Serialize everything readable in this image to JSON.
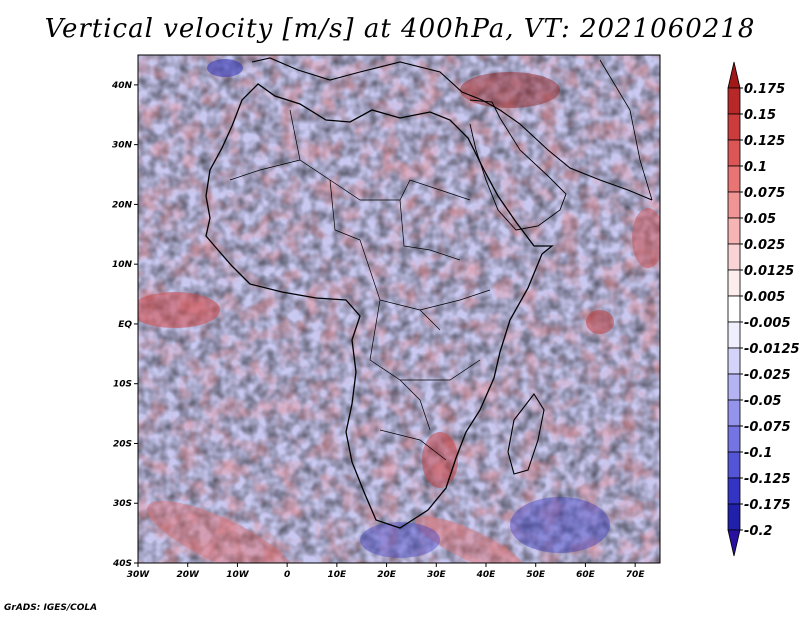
{
  "title": "Vertical velocity [m/s] at 400hPa, VT: 2021060218",
  "credit": "GrADS: IGES/COLA",
  "map": {
    "lat_labels": [
      "40N",
      "30N",
      "20N",
      "10N",
      "EQ",
      "10S",
      "20S",
      "30S",
      "40S"
    ],
    "lat_values": [
      40,
      30,
      20,
      10,
      0,
      -10,
      -20,
      -30,
      -40
    ],
    "lon_labels": [
      "30W",
      "20W",
      "10W",
      "0",
      "10E",
      "20E",
      "30E",
      "40E",
      "50E",
      "60E",
      "70E"
    ],
    "lon_values": [
      -30,
      -20,
      -10,
      0,
      10,
      20,
      30,
      40,
      50,
      60,
      70
    ],
    "lon_range": [
      -30,
      75
    ],
    "lat_range": [
      -40,
      45
    ]
  },
  "colorbar": {
    "labels": [
      "0.175",
      "0.15",
      "0.125",
      "0.1",
      "0.075",
      "0.05",
      "0.025",
      "0.0125",
      "0.005",
      "-0.005",
      "-0.0125",
      "-0.025",
      "-0.05",
      "-0.075",
      "-0.1",
      "-0.125",
      "-0.175",
      "-0.2"
    ],
    "colors": [
      "#a01818",
      "#b82828",
      "#cc3c3c",
      "#dc5656",
      "#e87474",
      "#f09494",
      "#f6b4b4",
      "#fad4d4",
      "#fdeeee",
      "#ffffff",
      "#eeeefd",
      "#d4d4fa",
      "#b4b4f4",
      "#9494ec",
      "#7474e2",
      "#5454d6",
      "#3434c4",
      "#2020aa",
      "#2a10a0"
    ]
  }
}
